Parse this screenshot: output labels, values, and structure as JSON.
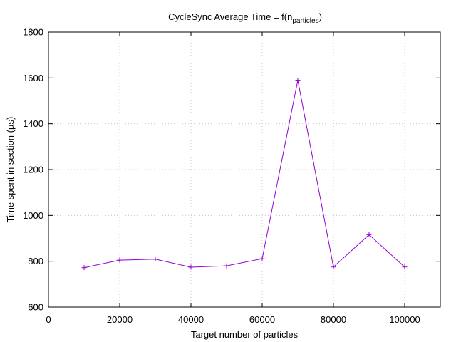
{
  "chart_data": {
    "type": "line",
    "title": "CycleSync Average Time = f(n",
    "title_subscript": "particles",
    "title_suffix": ")",
    "xlabel": "Target number of particles",
    "ylabel": "Time spent in section (µs)",
    "xlim": [
      0,
      110000
    ],
    "ylim": [
      600,
      1800
    ],
    "xticks": [
      0,
      20000,
      40000,
      60000,
      80000,
      100000
    ],
    "yticks": [
      600,
      800,
      1000,
      1200,
      1400,
      1600,
      1800
    ],
    "grid": true,
    "legend": "none",
    "series": [
      {
        "color": "#9400d3",
        "marker": "plus",
        "x": [
          10000,
          20000,
          30000,
          40000,
          50000,
          60000,
          70000,
          80000,
          90000,
          100000
        ],
        "y": [
          772,
          805,
          809,
          774,
          780,
          811,
          1590,
          775,
          916,
          775
        ]
      }
    ]
  }
}
